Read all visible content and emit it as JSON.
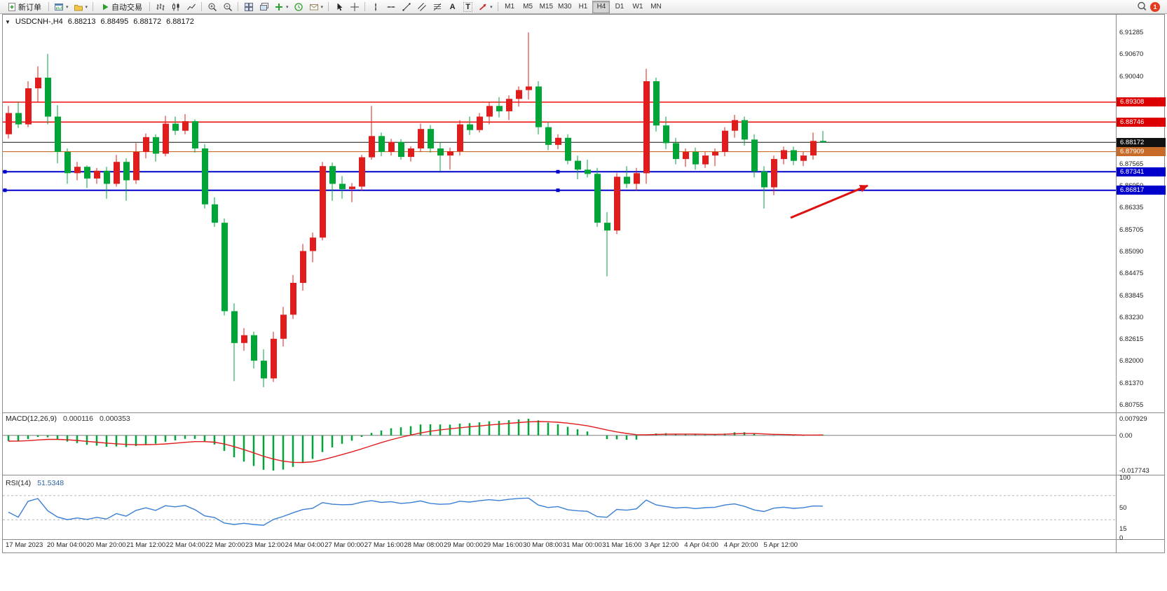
{
  "toolbar": {
    "new_order_label": "新订单",
    "autotrading_label": "自动交易",
    "text_tool_glyph": "A",
    "label_tool_glyph": "T",
    "timeframes": [
      "M1",
      "M5",
      "M15",
      "M30",
      "H1",
      "H4",
      "D1",
      "W1",
      "MN"
    ],
    "active_timeframe": "H4",
    "notification_badge": "1"
  },
  "chart": {
    "symbol": "USDCNH-,H4",
    "ohlc": {
      "open": "6.88213",
      "high": "6.88495",
      "low": "6.88172",
      "close": "6.88172"
    },
    "price_axis_labels": [
      "6.91285",
      "6.90670",
      "6.90040",
      "6.87565",
      "6.86950",
      "6.86335",
      "6.85705",
      "6.85090",
      "6.84475",
      "6.83845",
      "6.83230",
      "6.82615",
      "6.82000",
      "6.81370",
      "6.80755"
    ],
    "price_tags": [
      {
        "text": "6.89308",
        "bg": "#dd0000"
      },
      {
        "text": "6.88746",
        "bg": "#dd0000"
      },
      {
        "text": "6.88172",
        "bg": "#111111"
      },
      {
        "text": "6.87909",
        "bg": "#c86a28"
      },
      {
        "text": "6.87341",
        "bg": "#0000cc"
      },
      {
        "text": "6.86817",
        "bg": "#0000cc"
      }
    ],
    "levels": [
      {
        "price": 6.89308,
        "color": "#ee1111",
        "width": 1.6,
        "name": "resistance-line-1"
      },
      {
        "price": 6.88746,
        "color": "#ee1111",
        "width": 1.6,
        "name": "resistance-line-2"
      },
      {
        "price": 6.88172,
        "color": "#111111",
        "width": 1,
        "name": "current-price-line"
      },
      {
        "price": 6.87909,
        "color": "#c86a28",
        "width": 1.2,
        "name": "pivot-line"
      },
      {
        "price": 6.87341,
        "color": "#0000cc",
        "width": 2,
        "name": "support-line-1",
        "handles": true
      },
      {
        "price": 6.86817,
        "color": "#0000cc",
        "width": 2,
        "name": "support-line-2",
        "handles": true
      }
    ],
    "time_axis_labels": [
      "17 Mar 2023",
      "20 Mar 04:00",
      "20 Mar 20:00",
      "21 Mar 12:00",
      "22 Mar 04:00",
      "22 Mar 20:00",
      "23 Mar 12:00",
      "24 Mar 04:00",
      "27 Mar 00:00",
      "27 Mar 16:00",
      "28 Mar 08:00",
      "29 Mar 00:00",
      "29 Mar 16:00",
      "30 Mar 08:00",
      "31 Mar 00:00",
      "31 Mar 16:00",
      "3 Apr 12:00",
      "4 Apr 04:00",
      "4 Apr 20:00",
      "5 Apr 12:00"
    ],
    "colors": {
      "up": "#e01c1c",
      "down": "#00a538"
    }
  },
  "macd": {
    "title": "MACD(12,26,9)",
    "value_main": "0.000116",
    "value_signal": "0.000353",
    "axis_labels": [
      "0.007929",
      "0.00",
      "-0.017743"
    ],
    "histogram_color": "#00a538",
    "signal_color": "#e01c1c"
  },
  "rsi": {
    "title": "RSI(14)",
    "value": "51.5348",
    "period": 14,
    "axis_labels": [
      "100",
      "50",
      "15",
      "0"
    ],
    "levels": [
      70,
      30
    ],
    "line_color": "#3a7fd5"
  },
  "annotation_arrow": {
    "color": "#e01010"
  },
  "chart_data": {
    "type": "candlestick",
    "symbol": "USDCNH-",
    "timeframe": "H4",
    "up_color": "#e01c1c",
    "down_color": "#00a538",
    "horizontal_lines": [
      6.89308,
      6.88746,
      6.88172,
      6.87909,
      6.87341,
      6.86817
    ],
    "indicators": [
      {
        "name": "MACD",
        "params": [
          12,
          26,
          9
        ],
        "last_values": [
          0.000116,
          0.000353
        ]
      },
      {
        "name": "RSI",
        "params": [
          14
        ],
        "last_value": 51.5348
      }
    ],
    "price_axis_range": [
      6.80755,
      6.91285
    ],
    "candles": [
      [
        6.884,
        6.892,
        6.8828,
        6.89
      ],
      [
        6.89,
        6.8932,
        6.8858,
        6.8868
      ],
      [
        6.8868,
        6.899,
        6.886,
        6.897
      ],
      [
        6.897,
        6.9032,
        6.893,
        6.9
      ],
      [
        6.9,
        6.9067,
        6.8868,
        6.889
      ],
      [
        6.889,
        6.8922,
        6.8758,
        6.879
      ],
      [
        6.879,
        6.88,
        6.87,
        6.873
      ],
      [
        6.873,
        6.8762,
        6.871,
        6.8748
      ],
      [
        6.8748,
        6.8752,
        6.8688,
        6.8715
      ],
      [
        6.8715,
        6.8745,
        6.87,
        6.8737
      ],
      [
        6.8737,
        6.8748,
        6.8658,
        6.87
      ],
      [
        6.87,
        6.8782,
        6.8692,
        6.8762
      ],
      [
        6.8762,
        6.8772,
        6.8652,
        6.871
      ],
      [
        6.871,
        6.8815,
        6.87,
        6.879
      ],
      [
        6.879,
        6.8842,
        6.8772,
        6.8832
      ],
      [
        6.8832,
        6.884,
        6.8763,
        6.8785
      ],
      [
        6.8785,
        6.8892,
        6.8778,
        6.887
      ],
      [
        6.887,
        6.889,
        6.8838,
        6.885
      ],
      [
        6.885,
        6.8897,
        6.884,
        6.8877
      ],
      [
        6.8877,
        6.8882,
        6.8788,
        6.88
      ],
      [
        6.88,
        6.8812,
        6.863,
        6.8642
      ],
      [
        6.8642,
        6.8662,
        6.8578,
        6.859
      ],
      [
        6.859,
        6.8602,
        6.8328,
        6.834
      ],
      [
        6.834,
        6.8362,
        6.8142,
        6.825
      ],
      [
        6.825,
        6.8292,
        6.8228,
        6.8272
      ],
      [
        6.8272,
        6.8282,
        6.8178,
        6.82
      ],
      [
        6.82,
        6.8232,
        6.8125,
        6.815
      ],
      [
        6.815,
        6.8282,
        6.814,
        6.8262
      ],
      [
        6.8262,
        6.8352,
        6.824,
        6.833
      ],
      [
        6.833,
        6.8442,
        6.8318,
        6.842
      ],
      [
        6.842,
        6.853,
        6.8398,
        6.851
      ],
      [
        6.851,
        6.8562,
        6.8478,
        6.8548
      ],
      [
        6.8548,
        6.8762,
        6.854,
        6.875
      ],
      [
        6.875,
        6.876,
        6.8652,
        6.87
      ],
      [
        6.87,
        6.8722,
        6.8658,
        6.8685
      ],
      [
        6.8685,
        6.8702,
        6.8648,
        6.8692
      ],
      [
        6.8692,
        6.8782,
        6.868,
        6.8775
      ],
      [
        6.8775,
        6.892,
        6.8768,
        6.8835
      ],
      [
        6.8835,
        6.8845,
        6.8778,
        6.879
      ],
      [
        6.879,
        6.8827,
        6.878,
        6.8818
      ],
      [
        6.8818,
        6.8826,
        6.8768,
        6.8776
      ],
      [
        6.8776,
        6.8806,
        6.8763,
        6.88
      ],
      [
        6.88,
        6.887,
        6.879,
        6.8855
      ],
      [
        6.8855,
        6.8866,
        6.8788,
        6.88
      ],
      [
        6.88,
        6.8816,
        6.8735,
        6.878
      ],
      [
        6.878,
        6.8802,
        6.874,
        6.8792
      ],
      [
        6.8792,
        6.888,
        6.878,
        6.8868
      ],
      [
        6.8868,
        6.889,
        6.8838,
        6.8852
      ],
      [
        6.8852,
        6.89,
        6.8845,
        6.889
      ],
      [
        6.889,
        6.893,
        6.8868,
        6.892
      ],
      [
        6.892,
        6.8945,
        6.8888,
        6.8905
      ],
      [
        6.8905,
        6.895,
        6.888,
        6.894
      ],
      [
        6.894,
        6.8975,
        6.8918,
        6.8965
      ],
      [
        6.8965,
        6.9128,
        6.8938,
        6.8975
      ],
      [
        6.8975,
        6.899,
        6.884,
        6.886
      ],
      [
        6.886,
        6.8875,
        6.8795,
        6.881
      ],
      [
        6.881,
        6.884,
        6.8798,
        6.883
      ],
      [
        6.883,
        6.884,
        6.8755,
        6.8765
      ],
      [
        6.8765,
        6.878,
        6.8713,
        6.874
      ],
      [
        6.874,
        6.8768,
        6.8718,
        6.8728
      ],
      [
        6.8728,
        6.8745,
        6.8578,
        6.859
      ],
      [
        6.859,
        6.862,
        6.8438,
        6.8568
      ],
      [
        6.8568,
        6.873,
        6.8558,
        6.872
      ],
      [
        6.872,
        6.875,
        6.8688,
        6.87
      ],
      [
        6.87,
        6.8745,
        6.868,
        6.873
      ],
      [
        6.873,
        6.9025,
        6.87,
        6.899
      ],
      [
        6.899,
        6.9,
        6.8848,
        6.8865
      ],
      [
        6.8865,
        6.889,
        6.8798,
        6.8815
      ],
      [
        6.8815,
        6.883,
        6.8755,
        6.877
      ],
      [
        6.877,
        6.88,
        6.8748,
        6.879
      ],
      [
        6.879,
        6.8802,
        6.874,
        6.8755
      ],
      [
        6.8755,
        6.879,
        6.8745,
        6.878
      ],
      [
        6.878,
        6.88,
        6.875,
        6.879
      ],
      [
        6.879,
        6.886,
        6.8778,
        6.885
      ],
      [
        6.885,
        6.8895,
        6.883,
        6.888
      ],
      [
        6.888,
        6.889,
        6.8808,
        6.8825
      ],
      [
        6.8825,
        6.884,
        6.8718,
        6.8735
      ],
      [
        6.8735,
        6.875,
        6.863,
        6.869
      ],
      [
        6.869,
        6.878,
        6.8668,
        6.877
      ],
      [
        6.877,
        6.8805,
        6.8755,
        6.8795
      ],
      [
        6.8795,
        6.8805,
        6.8753,
        6.8765
      ],
      [
        6.8765,
        6.879,
        6.875,
        6.878
      ],
      [
        6.878,
        6.8845,
        6.8768,
        6.8821
      ],
      [
        6.88213,
        6.88495,
        6.88172,
        6.88172
      ]
    ]
  }
}
